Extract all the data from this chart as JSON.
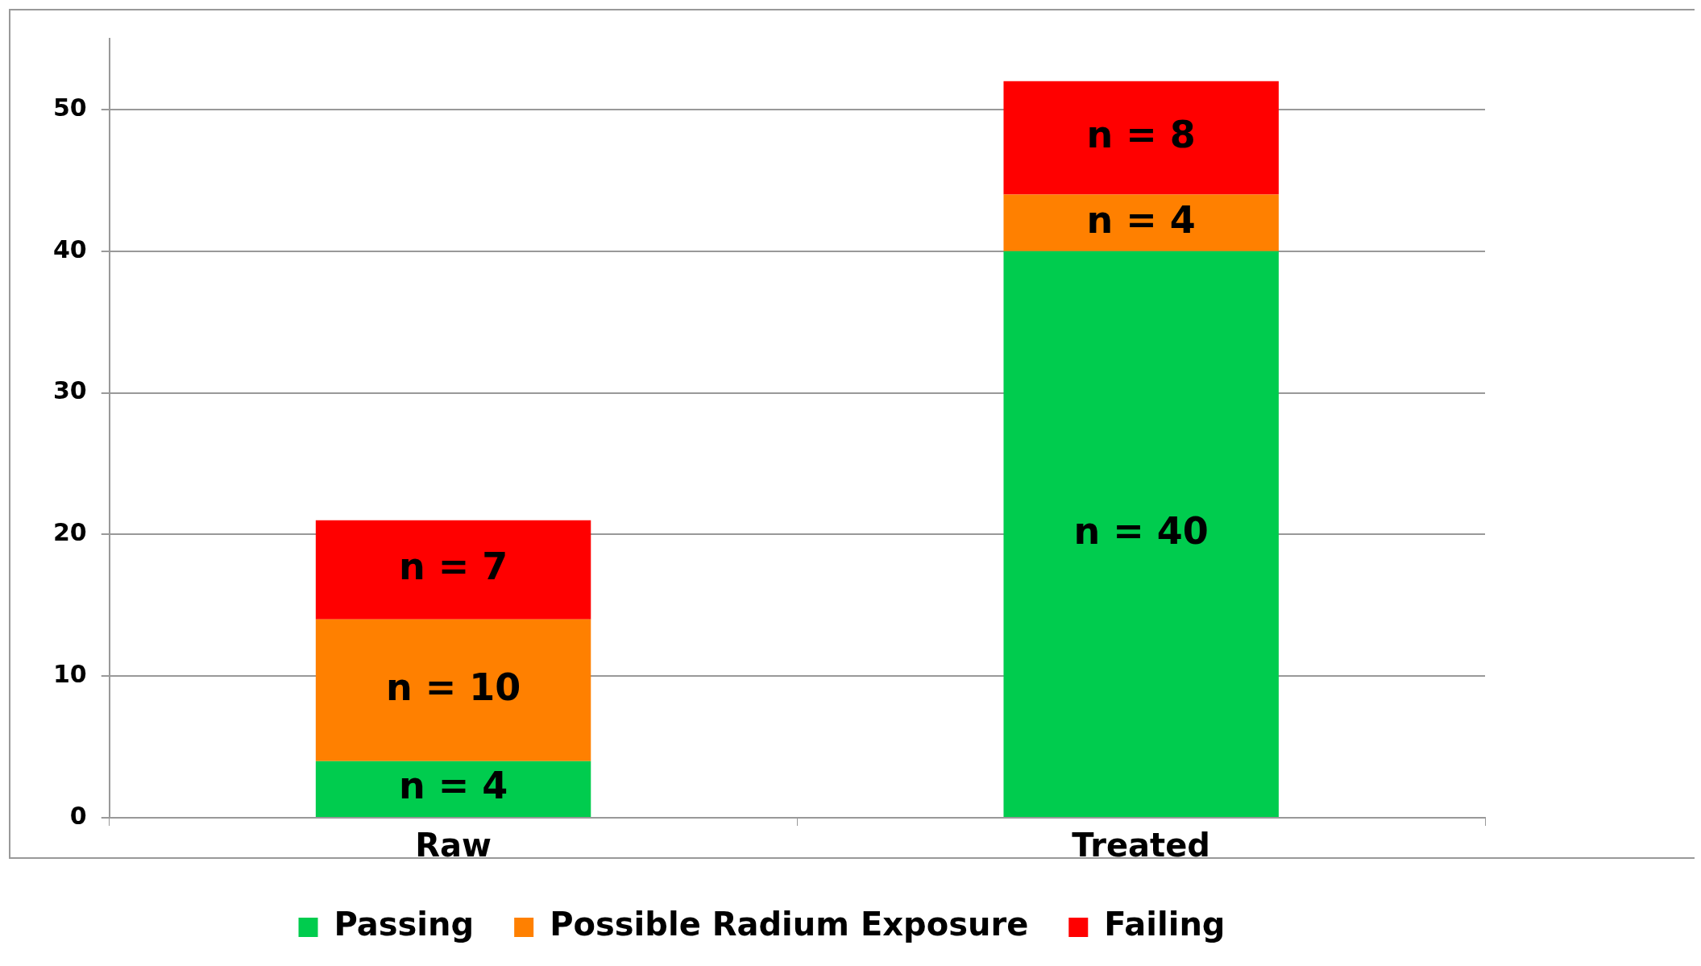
{
  "chart_data": {
    "type": "bar",
    "stacked": true,
    "categories": [
      "Raw",
      "Treated"
    ],
    "series": [
      {
        "name": "Passing",
        "color": "#00cc4e",
        "values": [
          4,
          40
        ],
        "value_labels": [
          "n = 4",
          "n = 40"
        ]
      },
      {
        "name": "Possible Radium Exposure",
        "color": "#ff8000",
        "values": [
          10,
          4
        ],
        "value_labels": [
          "n = 10",
          "n = 4"
        ]
      },
      {
        "name": "Failing",
        "color": "#ff0000",
        "values": [
          7,
          8
        ],
        "value_labels": [
          "n = 7",
          "n = 8"
        ]
      }
    ],
    "ylim": [
      0,
      55
    ],
    "yticks": [
      0,
      10,
      20,
      30,
      40,
      50
    ],
    "grid": "y",
    "legend": "bottom"
  }
}
